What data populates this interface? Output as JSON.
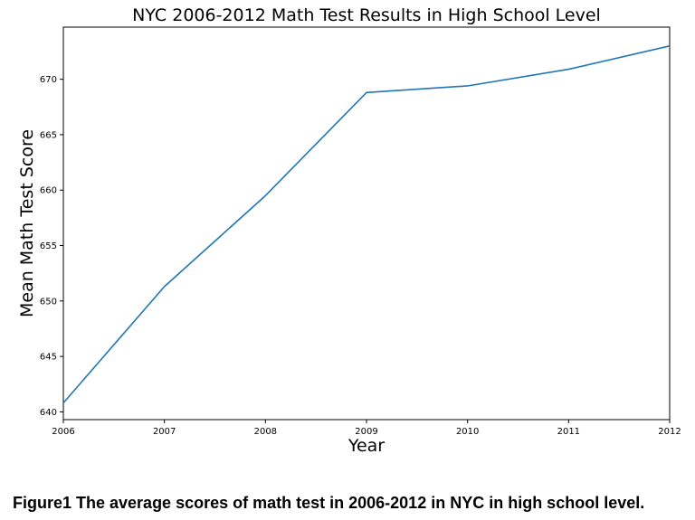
{
  "chart_data": {
    "type": "line",
    "title": "NYC 2006-2012 Math Test Results in High School Level",
    "xlabel": "Year",
    "ylabel": "Mean Math Test Score",
    "x": [
      2006,
      2007,
      2008,
      2009,
      2010,
      2011,
      2012
    ],
    "series": [
      {
        "values": [
          640.8,
          651.3,
          659.5,
          668.8,
          669.4,
          670.9,
          673.0
        ],
        "color": "#1f77b4"
      }
    ],
    "xlim": [
      2006,
      2012
    ],
    "ylim": [
      639.3,
      674.7
    ],
    "xticks": [
      "2006",
      "2007",
      "2008",
      "2009",
      "2010",
      "2011",
      "2012"
    ],
    "yticks": [
      "640",
      "645",
      "650",
      "655",
      "660",
      "665",
      "670"
    ],
    "grid": false
  },
  "caption": "Figure1 The average scores of math test in 2006-2012 in NYC in high school level."
}
